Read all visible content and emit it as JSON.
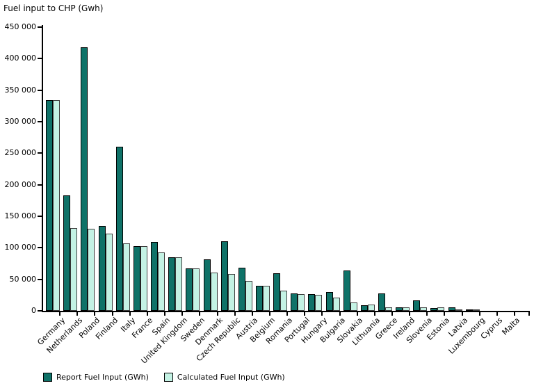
{
  "title": "Fuel input to CHP (Gwh)",
  "legend": {
    "items": [
      {
        "label": "Report Fuel Input (GWh)",
        "color": "#0F7268"
      },
      {
        "label": "Calculated Fuel Input (GWh)",
        "color": "#C4F2E4"
      }
    ]
  },
  "chart_data": {
    "type": "bar",
    "title": "Fuel input to CHP (Gwh)",
    "categories": [
      "Germany",
      "Netherlands",
      "Poland",
      "Finland",
      "Italy",
      "France",
      "Spain",
      "United Kingdom",
      "Sweden",
      "Denmark",
      "Czech Republic",
      "Austria",
      "Belgium",
      "Romania",
      "Portugal",
      "Hungary",
      "Bulgaria",
      "Slovakia",
      "Lithuania",
      "Greece",
      "Ireland",
      "Slovenia",
      "Estonia",
      "Latvia",
      "Luxembourg",
      "Cyprus",
      "Malta"
    ],
    "series": [
      {
        "name": "Report Fuel Input (GWh)",
        "color": "#0F7268",
        "values": [
          334000,
          183000,
          418000,
          135000,
          260000,
          103000,
          109000,
          85000,
          67500,
          82000,
          110000,
          68000,
          40000,
          60000,
          27500,
          26500,
          30000,
          64000,
          8500,
          27500,
          5200,
          17000,
          4700,
          5900,
          1400,
          0,
          0
        ]
      },
      {
        "name": "Calculated Fuel Input (GWh)",
        "color": "#C4F2E4",
        "values": [
          334000,
          131000,
          130000,
          123000,
          107000,
          103000,
          92500,
          85000,
          67500,
          61000,
          59000,
          48000,
          40000,
          32000,
          27000,
          25000,
          21000,
          13500,
          9500,
          6000,
          5900,
          5200,
          5500,
          2200,
          700,
          0,
          0
        ]
      }
    ],
    "xlabel": "",
    "ylabel": "",
    "ylim": [
      0,
      450000
    ],
    "ytick_step": 50000,
    "ytick_labels": [
      "0",
      "50 000",
      "100 000",
      "150 000",
      "200 000",
      "250 000",
      "300 000",
      "350 000",
      "400 000",
      "450 000"
    ],
    "grid": false,
    "legend_position": "bottom-left"
  }
}
